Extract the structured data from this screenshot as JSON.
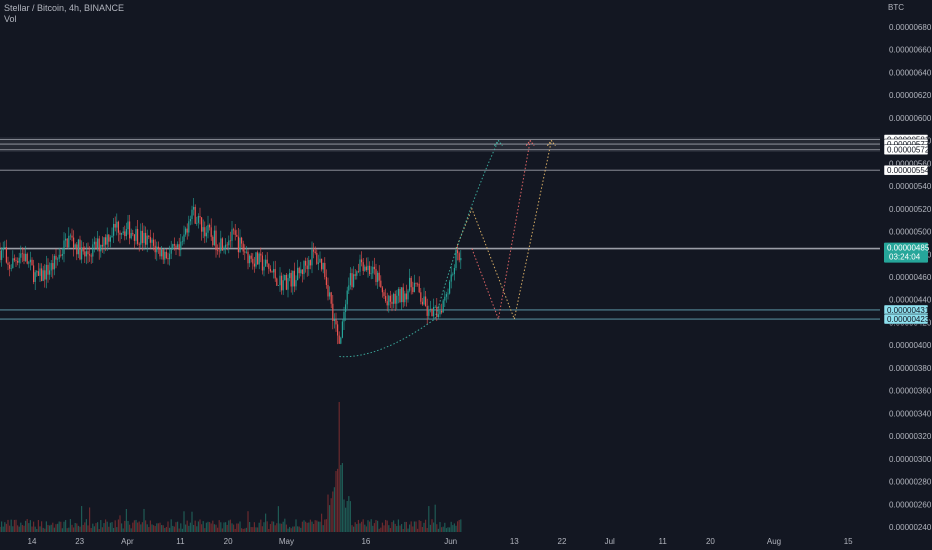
{
  "header": {
    "title": "Stellar / Bitcoin, 4h, BINANCE",
    "volume_label": "Vol"
  },
  "chart_data": {
    "type": "candlestick",
    "price_currency": "BTC",
    "y_ticks": [
      "0.00000680",
      "0.00000660",
      "0.00000640",
      "0.00000620",
      "0.00000600",
      "0.00000580",
      "0.00000560",
      "0.00000540",
      "0.00000520",
      "0.00000500",
      "0.00000480",
      "0.00000460",
      "0.00000440",
      "0.00000420",
      "0.00000400",
      "0.00000380",
      "0.00000360",
      "0.00000340",
      "0.00000320",
      "0.00000300",
      "0.00000280",
      "0.00000260",
      "0.00000240"
    ],
    "y_range": [
      2.34e-06,
      6.88e-06
    ],
    "x_ticks": [
      "14",
      "23",
      "Apr",
      "11",
      "20",
      "May",
      "16",
      "Jun",
      "13",
      "22",
      "Jul",
      "11",
      "20",
      "Aug",
      "15"
    ],
    "ohlc_path": [
      {
        "x": "Mar 9",
        "price": 4.65e-06
      },
      {
        "x": "Mar 12",
        "price": 4.82e-06
      },
      {
        "x": "Mar 15",
        "price": 4.58e-06
      },
      {
        "x": "Mar 18",
        "price": 4.7e-06
      },
      {
        "x": "Mar 21",
        "price": 4.95e-06
      },
      {
        "x": "Mar 24",
        "price": 4.78e-06
      },
      {
        "x": "Mar 27",
        "price": 4.9e-06
      },
      {
        "x": "Mar 30",
        "price": 5.05e-06
      },
      {
        "x": "Apr 2",
        "price": 5e-06
      },
      {
        "x": "Apr 5",
        "price": 4.9e-06
      },
      {
        "x": "Apr 8",
        "price": 4.8e-06
      },
      {
        "x": "Apr 11",
        "price": 4.82e-06
      },
      {
        "x": "Apr 13",
        "price": 5.2e-06
      },
      {
        "x": "Apr 15",
        "price": 5.05e-06
      },
      {
        "x": "Apr 18",
        "price": 4.9e-06
      },
      {
        "x": "Apr 21",
        "price": 4.95e-06
      },
      {
        "x": "Apr 24",
        "price": 4.78e-06
      },
      {
        "x": "Apr 27",
        "price": 4.7e-06
      },
      {
        "x": "Apr 30",
        "price": 4.55e-06
      },
      {
        "x": "May 3",
        "price": 4.6e-06
      },
      {
        "x": "May 6",
        "price": 4.8e-06
      },
      {
        "x": "May 8",
        "price": 4.7e-06
      },
      {
        "x": "May 11",
        "price": 4e-06
      },
      {
        "x": "May 13",
        "price": 4.55e-06
      },
      {
        "x": "May 15",
        "price": 4.75e-06
      },
      {
        "x": "May 18",
        "price": 4.6e-06
      },
      {
        "x": "May 20",
        "price": 4.35e-06
      },
      {
        "x": "May 23",
        "price": 4.45e-06
      },
      {
        "x": "May 25",
        "price": 4.55e-06
      },
      {
        "x": "May 28",
        "price": 4.25e-06
      },
      {
        "x": "May 30",
        "price": 4.32e-06
      },
      {
        "x": "Jun 1",
        "price": 4.6e-06
      },
      {
        "x": "Jun 2",
        "price": 4.78e-06
      },
      {
        "x": "Jun 3",
        "price": 4.83e-06
      }
    ],
    "volume_spike": {
      "x": "May 11",
      "height": "tall"
    },
    "levels": [
      {
        "price": 5.81e-06,
        "label": "0.00000581",
        "style": "white-tag"
      },
      {
        "price": 5.77e-06,
        "label": "0.00000577",
        "style": "white-tag"
      },
      {
        "price": 5.72e-06,
        "label": "0.00000572",
        "style": "white-tag"
      },
      {
        "price": 5.54e-06,
        "label": "0.00000554",
        "style": "white-tag"
      },
      {
        "price": 4.85e-06,
        "label": "0.00000485",
        "style": "teal-tag"
      },
      {
        "price": 4.31e-06,
        "label": "0.00000431",
        "style": "cyan-tag"
      },
      {
        "price": 4.23e-06,
        "label": "0.00000423",
        "style": "cyan-tag"
      }
    ],
    "current_price": {
      "label": "0.00000485",
      "countdown": "03:24:04"
    },
    "projections": [
      {
        "color": "#e8b96a",
        "points": [
          [
            "Jun 2",
            4.85e-06
          ],
          [
            "Jun 5",
            5.2e-06
          ],
          [
            "Jun 13",
            4.23e-06
          ],
          [
            "Jun 20",
            5.8e-06
          ]
        ]
      },
      {
        "color": "#f06a6a",
        "points": [
          [
            "Jun 5",
            4.85e-06
          ],
          [
            "Jun 10",
            4.23e-06
          ],
          [
            "Jun 16",
            5.8e-06
          ]
        ]
      },
      {
        "color": "#3fb5a5",
        "points": [
          [
            "May 11",
            3.9e-06
          ],
          [
            "May 29",
            4.23e-06
          ],
          [
            "Jun 10",
            5.8e-06
          ]
        ]
      }
    ],
    "grid": false,
    "legend": "top-left"
  }
}
